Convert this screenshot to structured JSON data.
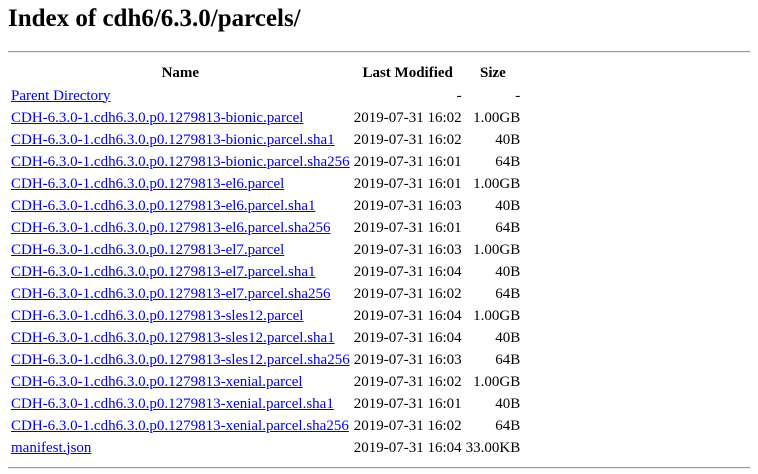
{
  "page": {
    "title": "Index of cdh6/6.3.0/parcels/"
  },
  "table": {
    "headers": {
      "name": "Name",
      "modified": "Last Modified",
      "size": "Size"
    },
    "rows": [
      {
        "name": "Parent Directory",
        "modified": "-",
        "size": "-"
      },
      {
        "name": "CDH-6.3.0-1.cdh6.3.0.p0.1279813-bionic.parcel",
        "modified": "2019-07-31 16:02",
        "size": "1.00GB"
      },
      {
        "name": "CDH-6.3.0-1.cdh6.3.0.p0.1279813-bionic.parcel.sha1",
        "modified": "2019-07-31 16:02",
        "size": "40B"
      },
      {
        "name": "CDH-6.3.0-1.cdh6.3.0.p0.1279813-bionic.parcel.sha256",
        "modified": "2019-07-31 16:01",
        "size": "64B"
      },
      {
        "name": "CDH-6.3.0-1.cdh6.3.0.p0.1279813-el6.parcel",
        "modified": "2019-07-31 16:01",
        "size": "1.00GB"
      },
      {
        "name": "CDH-6.3.0-1.cdh6.3.0.p0.1279813-el6.parcel.sha1",
        "modified": "2019-07-31 16:03",
        "size": "40B"
      },
      {
        "name": "CDH-6.3.0-1.cdh6.3.0.p0.1279813-el6.parcel.sha256",
        "modified": "2019-07-31 16:01",
        "size": "64B"
      },
      {
        "name": "CDH-6.3.0-1.cdh6.3.0.p0.1279813-el7.parcel",
        "modified": "2019-07-31 16:03",
        "size": "1.00GB"
      },
      {
        "name": "CDH-6.3.0-1.cdh6.3.0.p0.1279813-el7.parcel.sha1",
        "modified": "2019-07-31 16:04",
        "size": "40B"
      },
      {
        "name": "CDH-6.3.0-1.cdh6.3.0.p0.1279813-el7.parcel.sha256",
        "modified": "2019-07-31 16:02",
        "size": "64B"
      },
      {
        "name": "CDH-6.3.0-1.cdh6.3.0.p0.1279813-sles12.parcel",
        "modified": "2019-07-31 16:04",
        "size": "1.00GB"
      },
      {
        "name": "CDH-6.3.0-1.cdh6.3.0.p0.1279813-sles12.parcel.sha1",
        "modified": "2019-07-31 16:04",
        "size": "40B"
      },
      {
        "name": "CDH-6.3.0-1.cdh6.3.0.p0.1279813-sles12.parcel.sha256",
        "modified": "2019-07-31 16:03",
        "size": "64B"
      },
      {
        "name": "CDH-6.3.0-1.cdh6.3.0.p0.1279813-xenial.parcel",
        "modified": "2019-07-31 16:02",
        "size": "1.00GB"
      },
      {
        "name": "CDH-6.3.0-1.cdh6.3.0.p0.1279813-xenial.parcel.sha1",
        "modified": "2019-07-31 16:01",
        "size": "40B"
      },
      {
        "name": "CDH-6.3.0-1.cdh6.3.0.p0.1279813-xenial.parcel.sha256",
        "modified": "2019-07-31 16:02",
        "size": "64B"
      },
      {
        "name": "manifest.json",
        "modified": "2019-07-31 16:04",
        "size": "33.00KB"
      }
    ]
  },
  "colors": {
    "link": "#0000ee",
    "text": "#000000",
    "background": "#ffffff"
  }
}
